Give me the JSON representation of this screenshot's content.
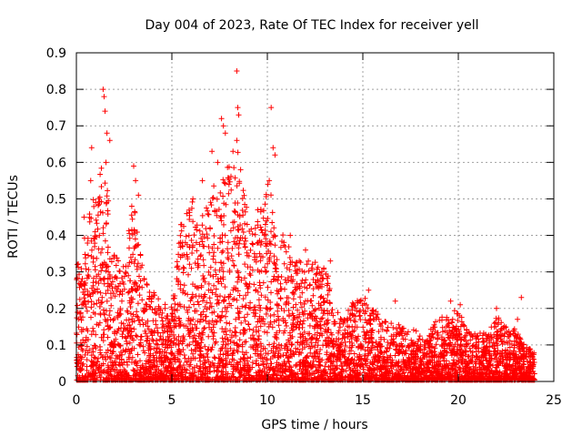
{
  "chart_data": {
    "type": "scatter",
    "title": "Day 004 of 2023, Rate Of TEC Index for receiver yell",
    "xlabel": "GPS time / hours",
    "ylabel": "ROTI / TECUs",
    "xlim": [
      0,
      25
    ],
    "ylim": [
      0,
      0.9
    ],
    "x_ticks": [
      "0",
      "5",
      "10",
      "15",
      "20",
      "25"
    ],
    "x_tick_values": [
      0,
      5,
      10,
      15,
      20,
      25
    ],
    "y_ticks": [
      "0",
      "0.1",
      "0.2",
      "0.3",
      "0.4",
      "0.5",
      "0.6",
      "0.7",
      "0.8",
      "0.9"
    ],
    "y_tick_values": [
      0,
      0.1,
      0.2,
      0.3,
      0.4,
      0.5,
      0.6,
      0.7,
      0.8,
      0.9
    ],
    "grid": true,
    "marker": "+",
    "color": "#ff0000",
    "series": [
      {
        "name": "ROTI",
        "envelope_hours": [
          0,
          0.5,
          1,
          1.5,
          2,
          2.5,
          3,
          3.5,
          4,
          4.5,
          5,
          5.5,
          6,
          6.5,
          7,
          7.5,
          8,
          8.5,
          9,
          9.5,
          10,
          10.5,
          11,
          11.5,
          12,
          12.5,
          13,
          13.5,
          14,
          14.5,
          15,
          15.5,
          16,
          16.5,
          17,
          17.5,
          18,
          18.5,
          19,
          19.5,
          20,
          20.5,
          21,
          21.5,
          22,
          22.5,
          23,
          23.5,
          24
        ],
        "envelope_values": [
          0.3,
          0.42,
          0.5,
          0.6,
          0.35,
          0.32,
          0.5,
          0.3,
          0.25,
          0.22,
          0.2,
          0.45,
          0.48,
          0.42,
          0.5,
          0.55,
          0.58,
          0.6,
          0.45,
          0.45,
          0.55,
          0.4,
          0.38,
          0.35,
          0.32,
          0.33,
          0.32,
          0.2,
          0.18,
          0.22,
          0.24,
          0.2,
          0.18,
          0.16,
          0.15,
          0.14,
          0.13,
          0.14,
          0.17,
          0.18,
          0.19,
          0.14,
          0.13,
          0.14,
          0.18,
          0.15,
          0.14,
          0.1,
          0.08
        ],
        "notable_points": [
          {
            "x": 0.05,
            "y": 0.32
          },
          {
            "x": 0.4,
            "y": 0.45
          },
          {
            "x": 0.8,
            "y": 0.64
          },
          {
            "x": 0.75,
            "y": 0.55
          },
          {
            "x": 1.4,
            "y": 0.8
          },
          {
            "x": 1.45,
            "y": 0.78
          },
          {
            "x": 1.5,
            "y": 0.74
          },
          {
            "x": 1.6,
            "y": 0.68
          },
          {
            "x": 1.75,
            "y": 0.66
          },
          {
            "x": 1.55,
            "y": 0.6
          },
          {
            "x": 3.0,
            "y": 0.59
          },
          {
            "x": 3.1,
            "y": 0.55
          },
          {
            "x": 3.25,
            "y": 0.51
          },
          {
            "x": 2.9,
            "y": 0.48
          },
          {
            "x": 6.1,
            "y": 0.5
          },
          {
            "x": 6.6,
            "y": 0.55
          },
          {
            "x": 7.1,
            "y": 0.63
          },
          {
            "x": 7.4,
            "y": 0.6
          },
          {
            "x": 7.6,
            "y": 0.72
          },
          {
            "x": 7.7,
            "y": 0.7
          },
          {
            "x": 7.8,
            "y": 0.68
          },
          {
            "x": 8.2,
            "y": 0.63
          },
          {
            "x": 8.4,
            "y": 0.85
          },
          {
            "x": 8.45,
            "y": 0.75
          },
          {
            "x": 8.5,
            "y": 0.73
          },
          {
            "x": 8.4,
            "y": 0.66
          },
          {
            "x": 8.6,
            "y": 0.58
          },
          {
            "x": 9.5,
            "y": 0.47
          },
          {
            "x": 10.2,
            "y": 0.75
          },
          {
            "x": 10.3,
            "y": 0.64
          },
          {
            "x": 10.4,
            "y": 0.62
          },
          {
            "x": 10.1,
            "y": 0.55
          },
          {
            "x": 11.2,
            "y": 0.4
          },
          {
            "x": 12.0,
            "y": 0.36
          },
          {
            "x": 13.3,
            "y": 0.33
          },
          {
            "x": 15.3,
            "y": 0.25
          },
          {
            "x": 16.7,
            "y": 0.22
          },
          {
            "x": 19.6,
            "y": 0.22
          },
          {
            "x": 20.1,
            "y": 0.21
          },
          {
            "x": 22.0,
            "y": 0.2
          },
          {
            "x": 23.3,
            "y": 0.23
          },
          {
            "x": 23.1,
            "y": 0.17
          }
        ]
      }
    ]
  }
}
